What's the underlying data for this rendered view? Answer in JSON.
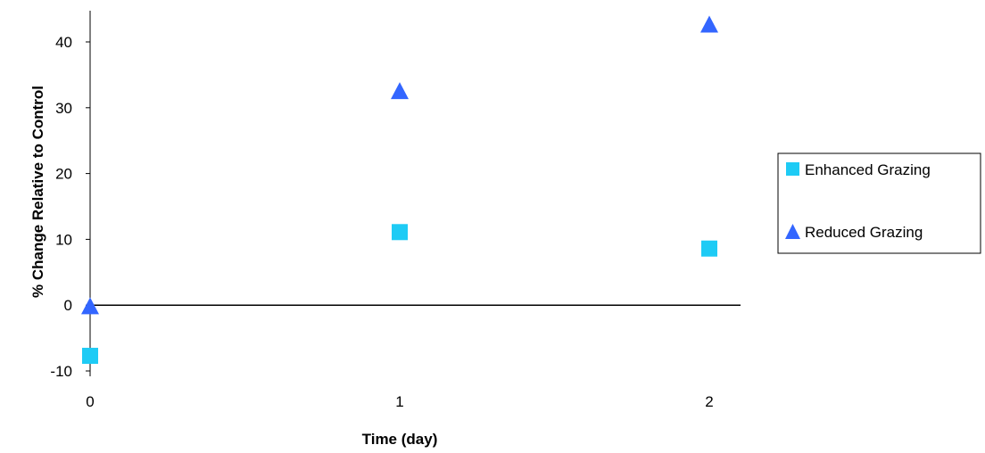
{
  "chart_data": {
    "type": "scatter",
    "title": "",
    "xlabel": "Time (day)",
    "ylabel": "% Change Relative to Control",
    "x_ticks": [
      "0",
      "1",
      "2"
    ],
    "y_ticks": [
      "-10",
      "0",
      "10",
      "20",
      "30",
      "40"
    ],
    "xlim": [
      0,
      2
    ],
    "ylim": [
      -10,
      45
    ],
    "grid": false,
    "legend_position": "right",
    "series": [
      {
        "name": "Enhanced Grazing",
        "marker": "square",
        "color": "#1ECBF5",
        "x": [
          0,
          1,
          2
        ],
        "y": [
          -7.7,
          11.1,
          8.6
        ]
      },
      {
        "name": "Reduced Grazing",
        "marker": "triangle",
        "color": "#3366FF",
        "x": [
          0,
          1,
          2
        ],
        "y": [
          -0.3,
          32.4,
          42.5
        ]
      }
    ]
  }
}
